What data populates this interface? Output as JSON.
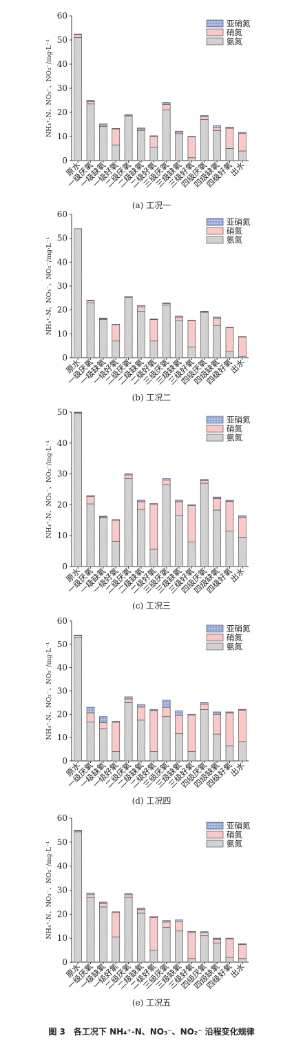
{
  "legend": [
    "亚硝氮",
    "硝氮",
    "氨氮"
  ],
  "ylabel": "NH₄⁺-N、NO₃⁻、NO₂⁻/mg·L⁻¹",
  "colors": {
    "ammonia": "#d9d9d9",
    "nitrate": "#f9c8c8",
    "nitrite": "#aabbe6",
    "stroke": "#555555"
  },
  "figure_caption": "图 3　各工况下 NH₄⁺-N、NO₃⁻、NO₂⁻ 沿程变化规律",
  "chart_data": [
    {
      "type": "bar",
      "stacked": true,
      "caption": "(a) 工况一",
      "ylim": [
        0,
        60
      ],
      "yticks": [
        0,
        10,
        20,
        30,
        40,
        50,
        60
      ],
      "categories": [
        "原水",
        "一级厌氧",
        "一级缺氧",
        "一级好氧",
        "二级厌氧",
        "二级缺氧",
        "二级好氧",
        "三级厌氧",
        "三级缺氧",
        "三级好氧",
        "四级厌氧",
        "四级缺氧",
        "四级好氧",
        "出水"
      ],
      "series": [
        {
          "name": "氨氮",
          "values": [
            51,
            23.5,
            14.2,
            6.5,
            18.4,
            12.5,
            5.6,
            21,
            11.2,
            1.2,
            17,
            12.5,
            5,
            4
          ]
        },
        {
          "name": "硝氮",
          "values": [
            1.2,
            1,
            0.6,
            6.6,
            0.4,
            0.6,
            4.4,
            2.3,
            0.6,
            8.6,
            1.2,
            1.2,
            8.4,
            7.3
          ]
        },
        {
          "name": "亚硝氮",
          "values": [
            0.3,
            0.5,
            0.4,
            0.2,
            0.2,
            0.4,
            0.3,
            0.8,
            0.4,
            0.2,
            0.5,
            0.8,
            0.5,
            0.4
          ]
        }
      ]
    },
    {
      "type": "bar",
      "stacked": true,
      "caption": "(b) 工况二",
      "ylim": [
        0,
        60
      ],
      "yticks": [
        0,
        10,
        20,
        30,
        40,
        50,
        60
      ],
      "categories": [
        "原水",
        "一级厌氧",
        "一级缺氧",
        "一级好氧",
        "二级厌氧",
        "二级缺氧",
        "二级好氧",
        "三级厌氧",
        "三级缺氧",
        "三级好氧",
        "四级厌氧",
        "四级缺氧",
        "四级好氧",
        "出水"
      ],
      "series": [
        {
          "name": "氨氮",
          "values": [
            54,
            23,
            16,
            7,
            25.3,
            19.5,
            7,
            22,
            15.5,
            4.5,
            19,
            13.5,
            2.5,
            0.5
          ]
        },
        {
          "name": "硝氮",
          "values": [
            0,
            0.8,
            0.3,
            6.8,
            0.3,
            1.8,
            9,
            0.6,
            1.5,
            11,
            0.2,
            3,
            10,
            8.2
          ]
        },
        {
          "name": "亚硝氮",
          "values": [
            0,
            0.3,
            0.3,
            0.2,
            0,
            0.5,
            0.2,
            0.3,
            0.5,
            0.2,
            0.3,
            0.5,
            0.2,
            0.1
          ]
        }
      ]
    },
    {
      "type": "bar",
      "stacked": true,
      "caption": "(c) 工况三",
      "ylim": [
        0,
        50
      ],
      "yticks": [
        0,
        10,
        20,
        30,
        40,
        50
      ],
      "categories": [
        "原水",
        "一级厌氧",
        "一级缺氧",
        "一级好氧",
        "二级厌氧",
        "二级缺氧",
        "二级好氧",
        "三级厌氧",
        "三级缺氧",
        "三级好氧",
        "四级厌氧",
        "四级缺氧",
        "四级好氧",
        "出水"
      ],
      "series": [
        {
          "name": "氨氮",
          "values": [
            49.6,
            20.3,
            15.8,
            8.2,
            28.5,
            18.5,
            5.6,
            26.5,
            16.6,
            8,
            27,
            18.3,
            11.5,
            9.5
          ]
        },
        {
          "name": "硝氮",
          "values": [
            0.3,
            2.4,
            0.3,
            6.8,
            1.2,
            2.5,
            14.6,
            1.5,
            4.4,
            11.8,
            0.8,
            3.7,
            9.6,
            6.5
          ]
        },
        {
          "name": "亚硝氮",
          "values": [
            0.1,
            0.3,
            0.2,
            0.2,
            0.3,
            0.5,
            0.2,
            0.5,
            0.5,
            0.2,
            0.4,
            0.5,
            0.4,
            0.5
          ]
        }
      ]
    },
    {
      "type": "bar",
      "stacked": true,
      "caption": "(d) 工况四",
      "ylim": [
        0,
        60
      ],
      "yticks": [
        0,
        10,
        20,
        30,
        40,
        50,
        60
      ],
      "categories": [
        "原水",
        "一级厌氧",
        "一级缺氧",
        "一级好氧",
        "二级厌氧",
        "二级缺氧",
        "二级好氧",
        "三级厌氧",
        "三级缺氧",
        "三级好氧",
        "四级厌氧",
        "四级缺氧",
        "四级好氧",
        "出水"
      ],
      "series": [
        {
          "name": "氨氮",
          "values": [
            53,
            16.7,
            13.8,
            4,
            25,
            17.5,
            4,
            19,
            11.7,
            4,
            22,
            11.5,
            6.5,
            8.3
          ]
        },
        {
          "name": "硝氮",
          "values": [
            0.7,
            3.8,
            2.6,
            12.6,
            1.6,
            5.6,
            17.6,
            4,
            7.8,
            15.6,
            2.3,
            8.4,
            14,
            13.5
          ]
        },
        {
          "name": "亚硝氮",
          "values": [
            0.3,
            2.5,
            2.6,
            0.4,
            0.9,
            1.1,
            0.4,
            3,
            2,
            0.4,
            0.7,
            1.1,
            0.5,
            0.3
          ]
        }
      ]
    },
    {
      "type": "bar",
      "stacked": true,
      "caption": "(e) 工况五",
      "ylim": [
        0,
        60
      ],
      "yticks": [
        0,
        10,
        20,
        30,
        40,
        50,
        60
      ],
      "categories": [
        "原水",
        "一级厌氧",
        "一级缺氧",
        "一级好氧",
        "二级厌氧",
        "二级缺氧",
        "二级好氧",
        "三级厌氧",
        "三级缺氧",
        "三级好氧",
        "四级厌氧",
        "四级缺氧",
        "四级好氧",
        "出水"
      ],
      "series": [
        {
          "name": "氨氮",
          "values": [
            54.3,
            26.8,
            23,
            10.5,
            27,
            20.4,
            5,
            14.5,
            13,
            1.5,
            11,
            8,
            2,
            1.5
          ]
        },
        {
          "name": "硝氮",
          "values": [
            0.5,
            1.4,
            1.5,
            10.2,
            1.1,
            1.5,
            13.5,
            2.2,
            4,
            10.8,
            1.2,
            1.5,
            7.7,
            5.8
          ]
        },
        {
          "name": "亚硝氮",
          "values": [
            0.2,
            0.5,
            0.5,
            0.3,
            0.4,
            0.6,
            0.5,
            0.6,
            0.6,
            0.5,
            0.5,
            0.5,
            0.3,
            0.4
          ]
        }
      ]
    }
  ]
}
